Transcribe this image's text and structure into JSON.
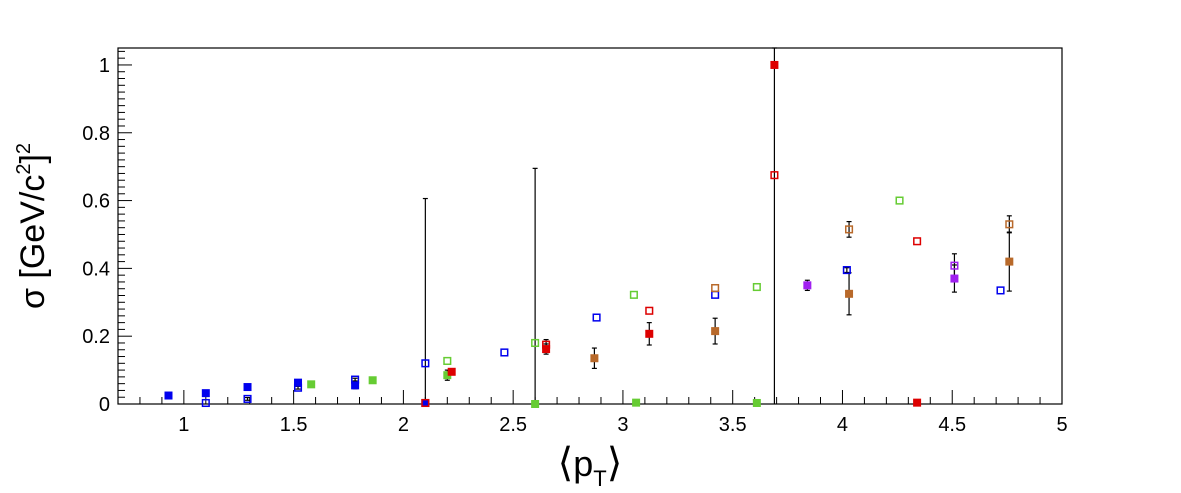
{
  "chart_data": {
    "type": "scatter",
    "title": "",
    "xlabel": "⟨p_T⟩",
    "ylabel": "σ [GeV/c²]²",
    "xlim": [
      0.7,
      5.0
    ],
    "ylim": [
      0,
      1.05
    ],
    "x_ticks": [
      1,
      1.5,
      2,
      2.5,
      3,
      3.5,
      4,
      4.5,
      5
    ],
    "x_tick_labels": [
      "1",
      "1.5",
      "2",
      "2.5",
      "3",
      "3.5",
      "4",
      "4.5",
      "5"
    ],
    "y_ticks": [
      0,
      0.2,
      0.4,
      0.6,
      0.8,
      1
    ],
    "y_tick_labels": [
      "0",
      "0.2",
      "0.4",
      "0.6",
      "0.8",
      "1"
    ],
    "grid": false,
    "legend": "none",
    "series": [
      {
        "color": "#0000ee",
        "marker": "filled-square",
        "points": [
          {
            "x": 0.93,
            "y": 0.025,
            "err": 0.005
          },
          {
            "x": 1.1,
            "y": 0.032,
            "err": 0.005
          },
          {
            "x": 1.29,
            "y": 0.05,
            "err": 0.006
          },
          {
            "x": 1.52,
            "y": 0.063,
            "err": 0.006
          },
          {
            "x": 1.78,
            "y": 0.055,
            "err": 0.01
          },
          {
            "x": 2.1,
            "y": 0.003,
            "err": 0
          }
        ]
      },
      {
        "color": "#0000ee",
        "marker": "open-square",
        "points": [
          {
            "x": 1.1,
            "y": 0.003,
            "err": 0
          },
          {
            "x": 1.29,
            "y": 0.015,
            "err": 0.004
          },
          {
            "x": 1.52,
            "y": 0.048,
            "err": 0.004
          },
          {
            "x": 1.78,
            "y": 0.072,
            "err": 0.004
          },
          {
            "x": 2.1,
            "y": 0.12,
            "err": 0
          },
          {
            "x": 2.46,
            "y": 0.152,
            "err": 0
          },
          {
            "x": 2.88,
            "y": 0.255,
            "err": 0
          },
          {
            "x": 3.42,
            "y": 0.322,
            "err": 0
          },
          {
            "x": 4.02,
            "y": 0.395,
            "err": 0.007
          },
          {
            "x": 4.72,
            "y": 0.335,
            "err": 0
          }
        ]
      },
      {
        "color": "#66cc33",
        "marker": "filled-square",
        "points": [
          {
            "x": 1.58,
            "y": 0.058,
            "err": 0
          },
          {
            "x": 1.86,
            "y": 0.07,
            "err": 0
          },
          {
            "x": 2.2,
            "y": 0.085,
            "err": 0.015
          },
          {
            "x": 2.6,
            "y": 0.0,
            "err": 0
          },
          {
            "x": 3.06,
            "y": 0.004,
            "err": 0
          },
          {
            "x": 3.61,
            "y": 0.003,
            "err": 0
          }
        ]
      },
      {
        "color": "#66cc33",
        "marker": "open-square",
        "points": [
          {
            "x": 2.2,
            "y": 0.127,
            "err": 0
          },
          {
            "x": 2.6,
            "y": 0.18,
            "err": 0.515
          },
          {
            "x": 3.05,
            "y": 0.322,
            "err": 0
          },
          {
            "x": 3.61,
            "y": 0.345,
            "err": 0
          },
          {
            "x": 4.26,
            "y": 0.6,
            "err": 0
          }
        ]
      },
      {
        "color": "#dd0000",
        "marker": "filled-square",
        "points": [
          {
            "x": 2.22,
            "y": 0.095,
            "err": 0
          },
          {
            "x": 2.65,
            "y": 0.162,
            "err": 0.015
          },
          {
            "x": 3.12,
            "y": 0.207,
            "err": 0.033
          },
          {
            "x": 3.69,
            "y": 1.0,
            "err": 0
          },
          {
            "x": 4.34,
            "y": 0.004,
            "err": 0
          }
        ]
      },
      {
        "color": "#dd0000",
        "marker": "open-square",
        "points": [
          {
            "x": 2.1,
            "y": 0.003,
            "err": 0.603
          },
          {
            "x": 2.65,
            "y": 0.175,
            "err": 0.015
          },
          {
            "x": 3.12,
            "y": 0.275,
            "err": 0
          },
          {
            "x": 3.69,
            "y": 0.675,
            "err": 0.675
          },
          {
            "x": 4.34,
            "y": 0.48,
            "err": 0
          }
        ]
      },
      {
        "color": "#b8692a",
        "marker": "filled-square",
        "points": [
          {
            "x": 2.87,
            "y": 0.135,
            "err": 0.03
          },
          {
            "x": 3.42,
            "y": 0.215,
            "err": 0.038
          },
          {
            "x": 4.03,
            "y": 0.325,
            "err": 0.062
          },
          {
            "x": 4.76,
            "y": 0.42,
            "err": 0.087
          }
        ]
      },
      {
        "color": "#b8692a",
        "marker": "open-square",
        "points": [
          {
            "x": 3.42,
            "y": 0.342,
            "err": 0
          },
          {
            "x": 4.03,
            "y": 0.515,
            "err": 0.023
          },
          {
            "x": 4.76,
            "y": 0.53,
            "err": 0.025
          }
        ]
      },
      {
        "color": "#a020f0",
        "marker": "filled-square",
        "points": [
          {
            "x": 3.84,
            "y": 0.35,
            "err": 0.015
          },
          {
            "x": 4.51,
            "y": 0.37,
            "err": 0.04
          }
        ]
      },
      {
        "color": "#a020f0",
        "marker": "open-square",
        "points": [
          {
            "x": 4.51,
            "y": 0.408,
            "err": 0.035
          }
        ]
      }
    ]
  }
}
